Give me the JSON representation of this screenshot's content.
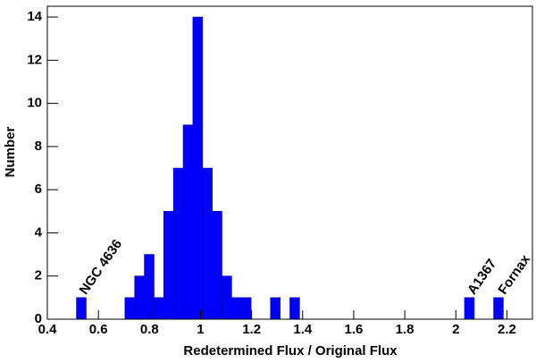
{
  "chart_data": {
    "type": "histogram",
    "x_label": "Redetermined Flux / Original Flux",
    "y_label": "Number",
    "color": "#0000ff",
    "bins": [
      0.514,
      0.552,
      0.59,
      0.628,
      0.666,
      0.704,
      0.742,
      0.78,
      0.818,
      0.856,
      0.894,
      0.932,
      0.97,
      1.008,
      1.046,
      1.084,
      1.122,
      1.16,
      1.198,
      1.236,
      1.274,
      1.312,
      1.35,
      1.388,
      1.426,
      1.464,
      1.502,
      1.54,
      1.578,
      1.616,
      1.654,
      1.692,
      1.73,
      1.768,
      1.806,
      1.844,
      1.882,
      1.92,
      1.958,
      1.996,
      2.034,
      2.072,
      2.11,
      2.148,
      2.186
    ],
    "values": [
      1,
      0,
      0,
      0,
      0,
      1,
      2,
      3,
      1,
      5,
      7,
      9,
      14,
      7,
      5,
      2,
      1,
      1,
      0,
      0,
      1,
      0,
      1,
      0,
      0,
      0,
      0,
      0,
      0,
      0,
      0,
      0,
      0,
      0,
      0,
      0,
      0,
      0,
      0,
      0,
      1,
      0,
      0,
      1
    ],
    "xlim": [
      0.4,
      2.3
    ],
    "ylim": [
      0,
      14.5
    ],
    "xticks": [
      0.4,
      0.6,
      0.8,
      1,
      1.2,
      1.4,
      1.6,
      1.8,
      2,
      2.2
    ],
    "yticks": [
      0,
      2,
      4,
      6,
      8,
      10,
      12,
      14
    ],
    "annotations": [
      {
        "text": "NGC 4636",
        "x": 0.54,
        "y": 1.2
      },
      {
        "text": "A1367",
        "x": 2.06,
        "y": 1.2
      },
      {
        "text": "Fornax",
        "x": 2.18,
        "y": 1.2
      }
    ]
  }
}
